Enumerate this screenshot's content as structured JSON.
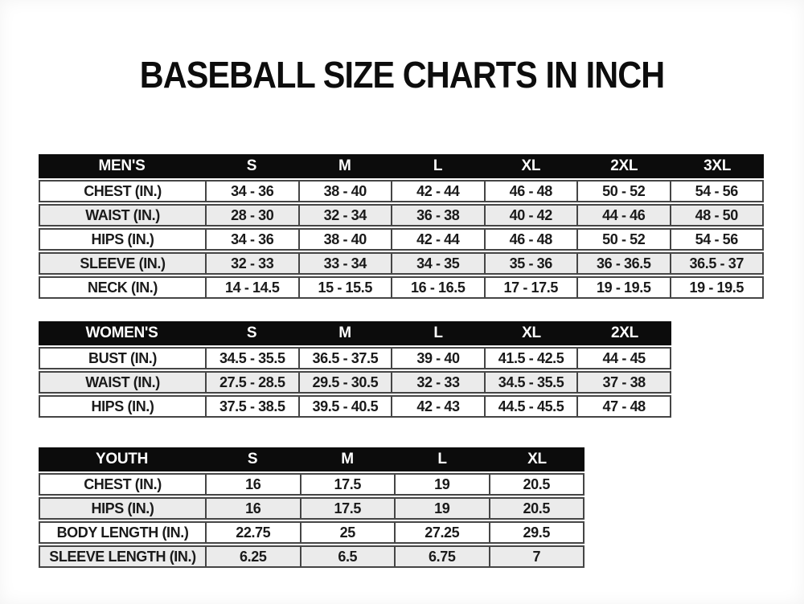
{
  "page": {
    "title": "BASEBALL SIZE CHARTS IN INCH"
  },
  "colors": {
    "header_bg": "#0c0c0c",
    "header_text": "#ffffff",
    "row_alt_bg": "#ebebeb",
    "border": "#454545"
  },
  "chart_data": [
    {
      "type": "table",
      "title": "MEN'S",
      "columns": [
        "MEN'S",
        "S",
        "M",
        "L",
        "XL",
        "2XL",
        "3XL"
      ],
      "rows": [
        [
          "CHEST (IN.)",
          "34 - 36",
          "38 - 40",
          "42 - 44",
          "46 - 48",
          "50 - 52",
          "54 - 56"
        ],
        [
          "WAIST (IN.)",
          "28 - 30",
          "32 - 34",
          "36 - 38",
          "40 - 42",
          "44 - 46",
          "48 - 50"
        ],
        [
          "HIPS (IN.)",
          "34 - 36",
          "38 - 40",
          "42 - 44",
          "46 - 48",
          "50 - 52",
          "54 - 56"
        ],
        [
          "SLEEVE (IN.)",
          "32 - 33",
          "33 - 34",
          "34 - 35",
          "35 - 36",
          "36 - 36.5",
          "36.5 - 37"
        ],
        [
          "NECK (IN.)",
          "14 - 14.5",
          "15 - 15.5",
          "16 - 16.5",
          "17 - 17.5",
          "19 - 19.5",
          "19 - 19.5"
        ]
      ]
    },
    {
      "type": "table",
      "title": "WOMEN'S",
      "columns": [
        "WOMEN'S",
        "S",
        "M",
        "L",
        "XL",
        "2XL"
      ],
      "rows": [
        [
          "BUST (IN.)",
          "34.5 - 35.5",
          "36.5 - 37.5",
          "39 - 40",
          "41.5 - 42.5",
          "44 - 45"
        ],
        [
          "WAIST (IN.)",
          "27.5 - 28.5",
          "29.5 - 30.5",
          "32 - 33",
          "34.5 - 35.5",
          "37 - 38"
        ],
        [
          "HIPS (IN.)",
          "37.5 - 38.5",
          "39.5 - 40.5",
          "42 - 43",
          "44.5 - 45.5",
          "47 - 48"
        ]
      ]
    },
    {
      "type": "table",
      "title": "YOUTH",
      "columns": [
        "YOUTH",
        "S",
        "M",
        "L",
        "XL"
      ],
      "rows": [
        [
          "CHEST (IN.)",
          "16",
          "17.5",
          "19",
          "20.5"
        ],
        [
          "HIPS (IN.)",
          "16",
          "17.5",
          "19",
          "20.5"
        ],
        [
          "BODY LENGTH (IN.)",
          "22.75",
          "25",
          "27.25",
          "29.5"
        ],
        [
          "SLEEVE LENGTH (IN.)",
          "6.25",
          "6.5",
          "6.75",
          "7"
        ]
      ]
    }
  ]
}
